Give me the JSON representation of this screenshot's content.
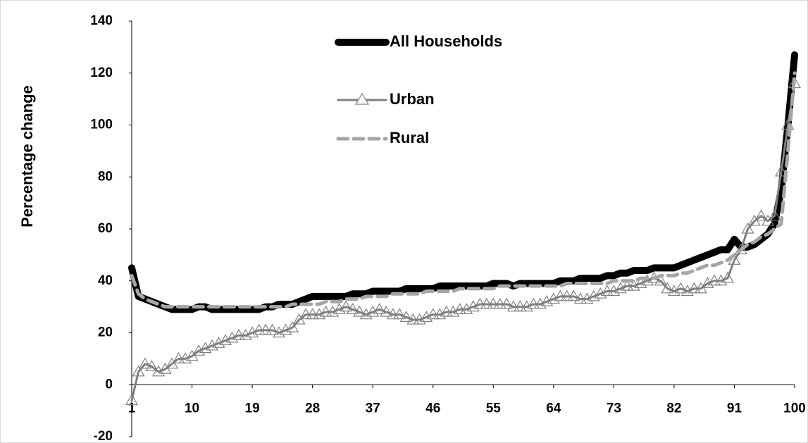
{
  "chart_data": {
    "type": "line",
    "y_label": "Percentage change",
    "x": [
      1,
      2,
      3,
      4,
      5,
      6,
      7,
      8,
      9,
      10,
      11,
      12,
      13,
      14,
      15,
      16,
      17,
      18,
      19,
      20,
      21,
      22,
      23,
      24,
      25,
      26,
      27,
      28,
      29,
      30,
      31,
      32,
      33,
      34,
      35,
      36,
      37,
      38,
      39,
      40,
      41,
      42,
      43,
      44,
      45,
      46,
      47,
      48,
      49,
      50,
      51,
      52,
      53,
      54,
      55,
      56,
      57,
      58,
      59,
      60,
      61,
      62,
      63,
      64,
      65,
      66,
      67,
      68,
      69,
      70,
      71,
      72,
      73,
      74,
      75,
      76,
      77,
      78,
      79,
      80,
      81,
      82,
      83,
      84,
      85,
      86,
      87,
      88,
      89,
      90,
      91,
      92,
      93,
      94,
      95,
      96,
      97,
      98,
      99,
      100
    ],
    "series": [
      {
        "name": "All Households",
        "color": "#000000",
        "marker": null,
        "dashed": false,
        "values": [
          45,
          34,
          33,
          32,
          31,
          30,
          29,
          29,
          29,
          29,
          30,
          30,
          29,
          29,
          29,
          29,
          29,
          29,
          29,
          29,
          30,
          30,
          31,
          31,
          31,
          32,
          33,
          34,
          34,
          34,
          34,
          34,
          34,
          35,
          35,
          35,
          36,
          36,
          36,
          36,
          36,
          37,
          37,
          37,
          37,
          37,
          38,
          38,
          38,
          38,
          38,
          38,
          38,
          38,
          39,
          39,
          39,
          38,
          39,
          39,
          39,
          39,
          39,
          39,
          40,
          40,
          40,
          41,
          41,
          41,
          41,
          42,
          42,
          43,
          43,
          44,
          44,
          44,
          45,
          45,
          45,
          45,
          46,
          47,
          48,
          49,
          50,
          51,
          52,
          52,
          56,
          53,
          53,
          54,
          56,
          58,
          62,
          75,
          100,
          127
        ]
      },
      {
        "name": "Urban",
        "color": "#7f7f7f",
        "marker": "triangle",
        "dashed": false,
        "values": [
          -6,
          5,
          8,
          7,
          5,
          6,
          8,
          10,
          10,
          11,
          13,
          14,
          15,
          16,
          17,
          18,
          19,
          19,
          20,
          21,
          21,
          21,
          20,
          21,
          22,
          25,
          27,
          27,
          27,
          28,
          28,
          29,
          30,
          29,
          28,
          27,
          28,
          29,
          28,
          27,
          27,
          26,
          25,
          25,
          26,
          27,
          27,
          28,
          28,
          29,
          29,
          30,
          31,
          31,
          31,
          31,
          31,
          30,
          30,
          30,
          31,
          31,
          32,
          33,
          34,
          34,
          34,
          33,
          33,
          34,
          35,
          36,
          36,
          37,
          38,
          38,
          39,
          40,
          41,
          40,
          37,
          36,
          37,
          36,
          37,
          37,
          39,
          40,
          40,
          41,
          48,
          52,
          60,
          63,
          65,
          63,
          65,
          82,
          100,
          116
        ]
      },
      {
        "name": "Rural",
        "color": "#a6a6a6",
        "marker": null,
        "dashed": true,
        "values": [
          42,
          35,
          33,
          32,
          31,
          30,
          30,
          30,
          30,
          30,
          30,
          30,
          30,
          30,
          30,
          30,
          30,
          30,
          30,
          30,
          30,
          30,
          30,
          30,
          31,
          31,
          31,
          31,
          31,
          32,
          32,
          32,
          33,
          33,
          33,
          34,
          34,
          34,
          34,
          35,
          35,
          35,
          35,
          35,
          36,
          36,
          36,
          36,
          36,
          37,
          37,
          37,
          37,
          37,
          37,
          38,
          38,
          38,
          38,
          38,
          38,
          38,
          38,
          38,
          38,
          39,
          39,
          39,
          39,
          39,
          39,
          39,
          40,
          40,
          40,
          40,
          41,
          41,
          41,
          42,
          42,
          42,
          43,
          43,
          44,
          45,
          46,
          46,
          47,
          48,
          50,
          52,
          54,
          55,
          57,
          58,
          60,
          62,
          90,
          120
        ]
      }
    ],
    "xlim": [
      1,
      100
    ],
    "xticks": [
      1,
      10,
      19,
      28,
      37,
      46,
      55,
      64,
      73,
      82,
      91,
      100
    ],
    "ylim": [
      -20,
      140
    ],
    "yticks": [
      -20,
      0,
      20,
      40,
      60,
      80,
      100,
      120,
      140
    ]
  }
}
